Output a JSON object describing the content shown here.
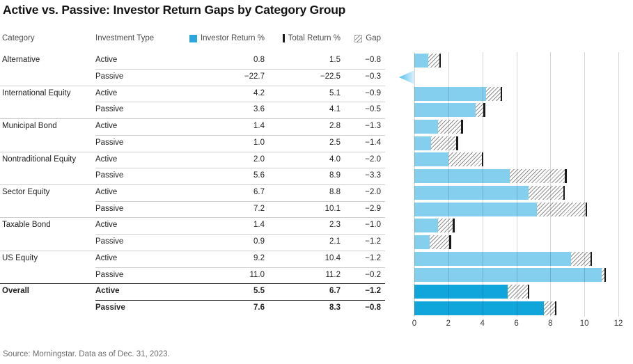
{
  "title": "Active vs. Passive: Investor Return Gaps by Category Group",
  "source_note": "Source: Morningstar. Data as of Dec. 31, 2023.",
  "table": {
    "col_category": "Category",
    "col_investment_type": "Investment Type"
  },
  "legend": {
    "investor": "Investor Return %",
    "total": "Total Return %",
    "gap": "Gap"
  },
  "colors": {
    "bar_light": "#84ceee",
    "bar_dark": "#10a5db",
    "legend_square": "#2ba7de",
    "tick": "#1a1a1a",
    "arrow_from": "#54c0eb",
    "arrow_to": "#dbeffb"
  },
  "chart_data": {
    "type": "bar",
    "orientation": "horizontal",
    "title": "Active vs. Passive: Investor Return Gaps by Category Group",
    "xlabel": "",
    "ylabel": "",
    "xlim": [
      0,
      12
    ],
    "x_ticks": [
      0,
      2,
      4,
      6,
      8,
      10,
      12
    ],
    "grid": true,
    "series_names": [
      "Investor Return %",
      "Total Return %",
      "Gap"
    ],
    "rows": [
      {
        "category": "Alternative",
        "type": "Active",
        "investor": 0.8,
        "total": 1.5,
        "gap": -0.8
      },
      {
        "category": "",
        "type": "Passive",
        "investor": -22.7,
        "total": -22.5,
        "gap": -0.3,
        "off_scale": true
      },
      {
        "category": "International Equity",
        "type": "Active",
        "investor": 4.2,
        "total": 5.1,
        "gap": -0.9
      },
      {
        "category": "",
        "type": "Passive",
        "investor": 3.6,
        "total": 4.1,
        "gap": -0.5
      },
      {
        "category": "Municipal Bond",
        "type": "Active",
        "investor": 1.4,
        "total": 2.8,
        "gap": -1.3
      },
      {
        "category": "",
        "type": "Passive",
        "investor": 1.0,
        "total": 2.5,
        "gap": -1.4
      },
      {
        "category": "Nontraditional Equity",
        "type": "Active",
        "investor": 2.0,
        "total": 4.0,
        "gap": -2.0
      },
      {
        "category": "",
        "type": "Passive",
        "investor": 5.6,
        "total": 8.9,
        "gap": -3.3
      },
      {
        "category": "Sector Equity",
        "type": "Active",
        "investor": 6.7,
        "total": 8.8,
        "gap": -2.0
      },
      {
        "category": "",
        "type": "Passive",
        "investor": 7.2,
        "total": 10.1,
        "gap": -2.9
      },
      {
        "category": "Taxable Bond",
        "type": "Active",
        "investor": 1.4,
        "total": 2.3,
        "gap": -1.0
      },
      {
        "category": "",
        "type": "Passive",
        "investor": 0.9,
        "total": 2.1,
        "gap": -1.2
      },
      {
        "category": "US Equity",
        "type": "Active",
        "investor": 9.2,
        "total": 10.4,
        "gap": -1.2
      },
      {
        "category": "",
        "type": "Passive",
        "investor": 11.0,
        "total": 11.2,
        "gap": -0.2
      },
      {
        "category": "Overall",
        "type": "Active",
        "investor": 5.5,
        "total": 6.7,
        "gap": -1.2,
        "bold": true
      },
      {
        "category": "",
        "type": "Passive",
        "investor": 7.6,
        "total": 8.3,
        "gap": -0.8,
        "bold": true
      }
    ]
  }
}
